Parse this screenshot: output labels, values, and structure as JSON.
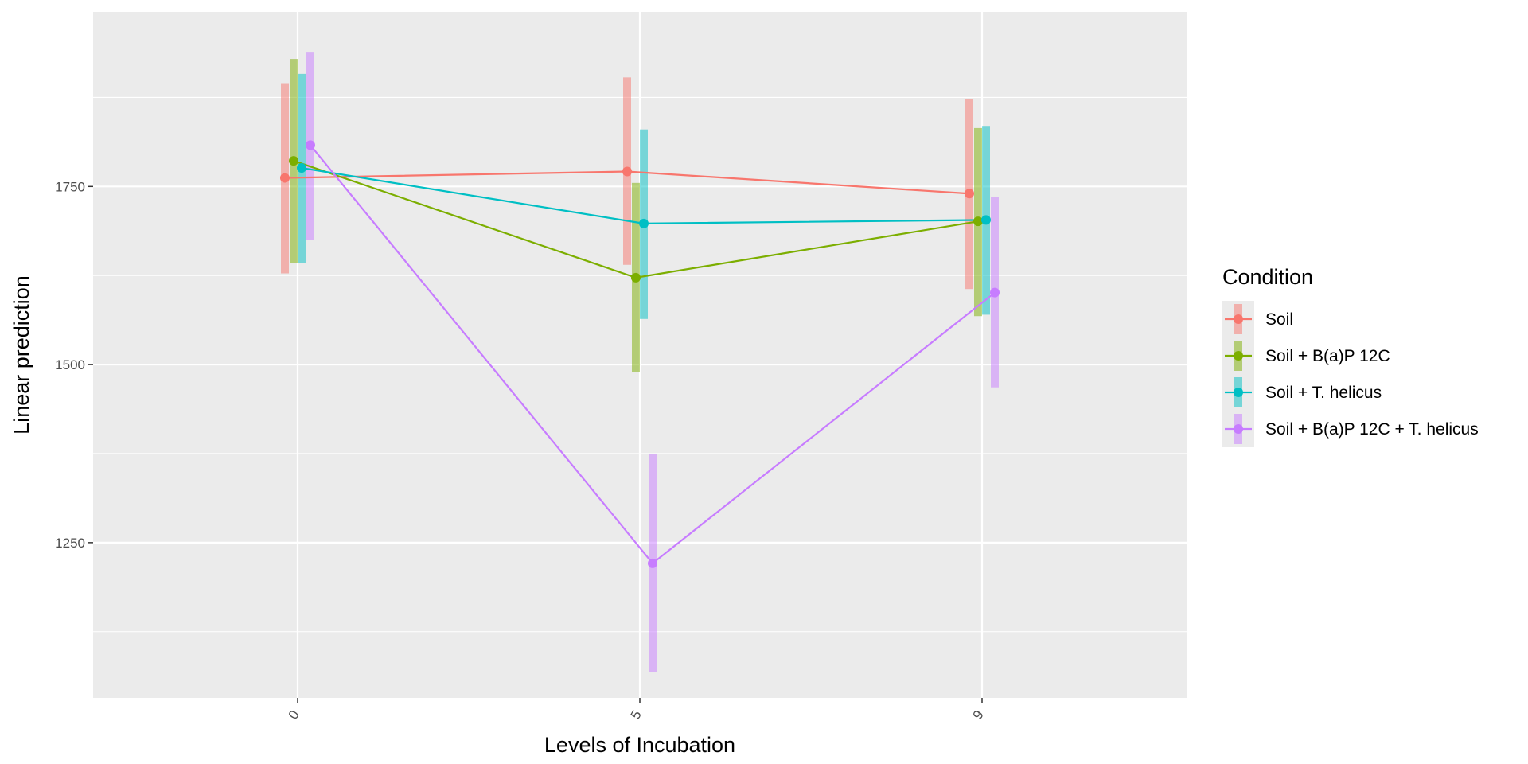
{
  "chart_data": {
    "type": "line",
    "xlabel": "Levels of Incubation",
    "ylabel": "Linear prediction",
    "categories": [
      "0",
      "5",
      "9"
    ],
    "yticks": [
      1250,
      1500,
      1750
    ],
    "ylim": [
      1032,
      1995
    ],
    "grid": true,
    "legend_title": "Condition",
    "legend_position": "right",
    "series": [
      {
        "name": "Soil",
        "color": "#F8766D",
        "values": [
          1762,
          1771,
          1740
        ],
        "lower": [
          1628,
          1640,
          1606
        ],
        "upper": [
          1895,
          1903,
          1873
        ]
      },
      {
        "name": "Soil + B(a)P 12C",
        "color": "#7CAE00",
        "values": [
          1786,
          1622,
          1701
        ],
        "lower": [
          1643,
          1489,
          1568
        ],
        "upper": [
          1929,
          1755,
          1832
        ]
      },
      {
        "name": "Soil + T. helicus",
        "color": "#00BFC4",
        "values": [
          1776,
          1698,
          1703
        ],
        "lower": [
          1643,
          1564,
          1570
        ],
        "upper": [
          1908,
          1830,
          1835
        ]
      },
      {
        "name": "Soil + B(a)P 12C + T. helicus",
        "color": "#C77CFF",
        "values": [
          1808,
          1221,
          1601
        ],
        "lower": [
          1675,
          1068,
          1468
        ],
        "upper": [
          1939,
          1374,
          1735
        ]
      }
    ]
  }
}
